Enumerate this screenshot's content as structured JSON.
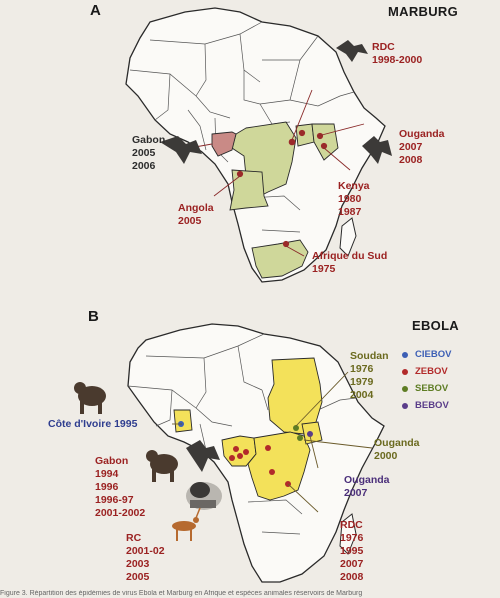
{
  "panel_a": {
    "letter": "A",
    "title": "MARBURG",
    "labels": {
      "rdc": "RDC\n1998-2000",
      "gabon": "Gabon\n2005\n2006",
      "ouganda": "Ouganda\n2007\n2008",
      "kenya": "Kenya\n1980\n1987",
      "angola": "Angola\n2005",
      "afrique_du_sud": "Afrique du Sud\n1975"
    },
    "colors": {
      "fill": "#cfd79a",
      "gabon_fill": "#c98a86"
    }
  },
  "panel_b": {
    "letter": "B",
    "title": "EBOLA",
    "legend": [
      {
        "label": "CIEBOV",
        "color": "#3d5fb5",
        "text_color": "#3d5fb5"
      },
      {
        "label": "ZEBOV",
        "color": "#b22a2a",
        "text_color": "#b22a2a"
      },
      {
        "label": "SEBOV",
        "color": "#5e7d24",
        "text_color": "#5e7d24"
      },
      {
        "label": "BEBOV",
        "color": "#5a3d8a",
        "text_color": "#5a3d8a"
      }
    ],
    "labels": {
      "soudan": "Soudan\n1976\n1979\n2004",
      "cote_ivoire": "Côte d'Ivoire 1995",
      "gabon": "Gabon\n1994\n1996\n1996-97\n2001-2002",
      "ouganda_sebov": "Ouganda\n2000",
      "ouganda_bebov": "Ouganda\n2007",
      "rdc": "RDC\n1976\n1995\n2007\n2008",
      "rc": "RC\n2001-02\n2003\n2005"
    },
    "colors": {
      "fill": "#f3e15a"
    }
  },
  "caption": "Figure 3. Répartition des épidémies de virus Ebola et Marburg en Afrique et espèces animales réservoirs de Marburg"
}
